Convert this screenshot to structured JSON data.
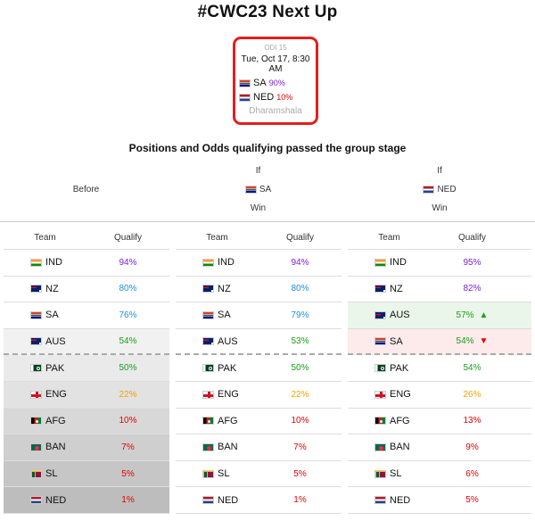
{
  "title": "#CWC23 Next Up",
  "match": {
    "id": "ODI 15",
    "date": "Tue, Oct 17, 8:30 AM",
    "team1": {
      "code": "SA",
      "pct": "90%",
      "pct_color": "#7b1fd8",
      "flag": "za-flag-icon"
    },
    "team2": {
      "code": "NED",
      "pct": "10%",
      "pct_color": "#e00000",
      "flag": "nl-flag-icon"
    },
    "venue": "Dharamshala"
  },
  "subtitle": "Positions and Odds qualifying passed the group stage",
  "columns": {
    "before": {
      "label": "Before"
    },
    "if_sa": {
      "line1": "If",
      "team": "SA",
      "line3": "Win"
    },
    "if_ned": {
      "line1": "If",
      "team": "NED",
      "line3": "Win"
    }
  },
  "table_headers": {
    "team": "Team",
    "qualify": "Qualify"
  },
  "tables": [
    {
      "name": "before",
      "rows": [
        {
          "flag": "in",
          "team": "IND",
          "q": "94%",
          "color": "#7b1fd8",
          "bg": "#ffffff"
        },
        {
          "flag": "nz",
          "team": "NZ",
          "q": "80%",
          "color": "#1e8fdc",
          "bg": "#ffffff"
        },
        {
          "flag": "za",
          "team": "SA",
          "q": "76%",
          "color": "#1e8fdc",
          "bg": "#ffffff"
        },
        {
          "flag": "au",
          "team": "AUS",
          "q": "54%",
          "color": "#1a9e1a",
          "bg": "#f1f1f1"
        },
        {
          "flag": "pk",
          "team": "PAK",
          "q": "50%",
          "color": "#1a9e1a",
          "bg": "#eaeaea"
        },
        {
          "flag": "en",
          "team": "ENG",
          "q": "22%",
          "color": "#f0a500",
          "bg": "#e2e2e2"
        },
        {
          "flag": "af",
          "team": "AFG",
          "q": "10%",
          "color": "#e00000",
          "bg": "#d8d8d8"
        },
        {
          "flag": "bd",
          "team": "BAN",
          "q": "7%",
          "color": "#e00000",
          "bg": "#cfcfcf"
        },
        {
          "flag": "lk",
          "team": "SL",
          "q": "5%",
          "color": "#e00000",
          "bg": "#c6c6c6"
        },
        {
          "flag": "nl",
          "team": "NED",
          "q": "1%",
          "color": "#e00000",
          "bg": "#bdbdbd"
        }
      ]
    },
    {
      "name": "if-sa-win",
      "rows": [
        {
          "flag": "in",
          "team": "IND",
          "q": "94%",
          "color": "#7b1fd8",
          "bg": "#ffffff"
        },
        {
          "flag": "nz",
          "team": "NZ",
          "q": "80%",
          "color": "#1e8fdc",
          "bg": "#ffffff"
        },
        {
          "flag": "za",
          "team": "SA",
          "q": "79%",
          "color": "#1e8fdc",
          "bg": "#ffffff"
        },
        {
          "flag": "au",
          "team": "AUS",
          "q": "53%",
          "color": "#1a9e1a",
          "bg": "#ffffff"
        },
        {
          "flag": "pk",
          "team": "PAK",
          "q": "50%",
          "color": "#1a9e1a",
          "bg": "#ffffff"
        },
        {
          "flag": "en",
          "team": "ENG",
          "q": "22%",
          "color": "#f0a500",
          "bg": "#ffffff"
        },
        {
          "flag": "af",
          "team": "AFG",
          "q": "10%",
          "color": "#e00000",
          "bg": "#ffffff"
        },
        {
          "flag": "bd",
          "team": "BAN",
          "q": "7%",
          "color": "#e00000",
          "bg": "#ffffff"
        },
        {
          "flag": "lk",
          "team": "SL",
          "q": "5%",
          "color": "#e00000",
          "bg": "#ffffff"
        },
        {
          "flag": "nl",
          "team": "NED",
          "q": "1%",
          "color": "#e00000",
          "bg": "#ffffff"
        }
      ]
    },
    {
      "name": "if-ned-win",
      "rows": [
        {
          "flag": "in",
          "team": "IND",
          "q": "95%",
          "color": "#7b1fd8",
          "bg": "#ffffff"
        },
        {
          "flag": "nz",
          "team": "NZ",
          "q": "82%",
          "color": "#7b1fd8",
          "bg": "#ffffff"
        },
        {
          "flag": "au",
          "team": "AUS",
          "q": "57%",
          "color": "#1a9e1a",
          "bg": "#eaf6ea",
          "move": "up"
        },
        {
          "flag": "za",
          "team": "SA",
          "q": "54%",
          "color": "#1a9e1a",
          "bg": "#fdeaea",
          "move": "down"
        },
        {
          "flag": "pk",
          "team": "PAK",
          "q": "54%",
          "color": "#1a9e1a",
          "bg": "#ffffff"
        },
        {
          "flag": "en",
          "team": "ENG",
          "q": "26%",
          "color": "#f0a500",
          "bg": "#ffffff"
        },
        {
          "flag": "af",
          "team": "AFG",
          "q": "13%",
          "color": "#e00000",
          "bg": "#ffffff"
        },
        {
          "flag": "bd",
          "team": "BAN",
          "q": "9%",
          "color": "#e00000",
          "bg": "#ffffff"
        },
        {
          "flag": "lk",
          "team": "SL",
          "q": "6%",
          "color": "#e00000",
          "bg": "#ffffff"
        },
        {
          "flag": "nl",
          "team": "NED",
          "q": "5%",
          "color": "#e00000",
          "bg": "#ffffff"
        }
      ]
    }
  ]
}
